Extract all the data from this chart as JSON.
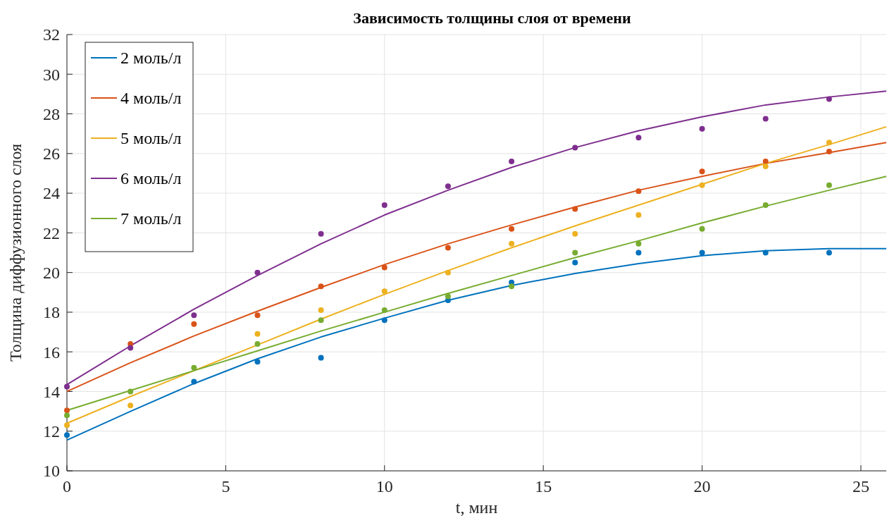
{
  "chart_data": {
    "type": "line",
    "title": "Зависимость толщины слоя от времени",
    "xlabel": "t, мин",
    "ylabel": "Толщина диффузионного слоя",
    "xlim": [
      0,
      25.8
    ],
    "xticks": [
      0,
      5,
      10,
      15,
      20,
      25
    ],
    "ylim": [
      10,
      32
    ],
    "yticks": [
      10,
      12,
      14,
      16,
      18,
      20,
      22,
      24,
      26,
      28,
      30,
      32
    ],
    "grid": true,
    "legend": "top left",
    "series": [
      {
        "name": "2 моль/л",
        "color": "#0072bd",
        "marker": "none",
        "x": [
          0,
          2,
          4,
          6,
          8,
          10,
          12,
          14,
          16,
          18,
          20,
          22,
          24,
          25.8
        ],
        "values": [
          11.55,
          13.0,
          14.4,
          15.65,
          16.75,
          17.7,
          18.6,
          19.35,
          19.95,
          20.45,
          20.85,
          21.1,
          21.2,
          21.2
        ]
      },
      {
        "name": "4 моль/л",
        "color": "#d95319",
        "marker": "none",
        "x": [
          0,
          2,
          4,
          6,
          8,
          10,
          12,
          14,
          16,
          18,
          20,
          22,
          24,
          25.8
        ],
        "values": [
          14.0,
          15.45,
          16.8,
          18.05,
          19.25,
          20.4,
          21.45,
          22.4,
          23.3,
          24.15,
          24.85,
          25.5,
          26.05,
          26.55
        ]
      },
      {
        "name": "5 моль/л",
        "color": "#edb120",
        "marker": "none",
        "x": [
          0,
          2,
          4,
          6,
          8,
          10,
          12,
          14,
          16,
          18,
          20,
          22,
          24,
          25.8
        ],
        "values": [
          12.4,
          13.75,
          15.05,
          16.35,
          17.65,
          18.9,
          20.1,
          21.25,
          22.35,
          23.4,
          24.45,
          25.5,
          26.45,
          27.35
        ]
      },
      {
        "name": "6 моль/л",
        "color": "#7e2f8e",
        "marker": "none",
        "x": [
          0,
          2,
          4,
          6,
          8,
          10,
          12,
          14,
          16,
          18,
          20,
          22,
          24,
          25.8
        ],
        "values": [
          14.35,
          16.3,
          18.15,
          19.85,
          21.45,
          22.9,
          24.15,
          25.3,
          26.3,
          27.15,
          27.85,
          28.45,
          28.85,
          29.15
        ]
      },
      {
        "name": "7 моль/л",
        "color": "#77ac30",
        "marker": "none",
        "x": [
          0,
          2,
          4,
          6,
          8,
          10,
          12,
          14,
          16,
          18,
          20,
          22,
          24,
          25.8
        ],
        "values": [
          13.05,
          14.05,
          15.05,
          16.05,
          17.05,
          18.0,
          18.95,
          19.85,
          20.75,
          21.6,
          22.5,
          23.35,
          24.15,
          24.85
        ]
      },
      {
        "type": "scatter",
        "color": "#0072bd",
        "marker": "circle",
        "x": [
          0,
          2,
          4,
          6,
          8,
          10,
          12,
          14,
          16,
          18,
          20,
          22,
          24
        ],
        "values": [
          11.8,
          null,
          14.5,
          15.5,
          15.7,
          17.6,
          18.6,
          19.5,
          20.5,
          21.0,
          21.0,
          21.0,
          21.0
        ]
      },
      {
        "type": "scatter",
        "color": "#d95319",
        "marker": "circle",
        "x": [
          0,
          2,
          4,
          6,
          8,
          10,
          12,
          14,
          16,
          18,
          20,
          22,
          24
        ],
        "values": [
          13.05,
          16.4,
          17.4,
          17.85,
          19.3,
          20.25,
          21.25,
          22.2,
          23.2,
          24.1,
          25.1,
          25.6,
          26.1
        ]
      },
      {
        "type": "scatter",
        "color": "#edb120",
        "marker": "circle",
        "x": [
          0,
          2,
          4,
          6,
          8,
          10,
          12,
          14,
          16,
          18,
          20,
          22,
          24
        ],
        "values": [
          12.3,
          13.3,
          null,
          16.9,
          18.1,
          19.05,
          20.0,
          21.45,
          21.95,
          22.9,
          24.4,
          25.35,
          26.55
        ]
      },
      {
        "type": "scatter",
        "color": "#7e2f8e",
        "marker": "circle",
        "x": [
          0,
          2,
          4,
          6,
          8,
          10,
          12,
          14,
          16,
          18,
          20,
          22,
          24
        ],
        "values": [
          14.25,
          16.2,
          17.85,
          20.0,
          21.95,
          23.4,
          24.35,
          25.6,
          26.3,
          26.8,
          27.25,
          27.75,
          28.75
        ]
      },
      {
        "type": "scatter",
        "color": "#77ac30",
        "marker": "circle",
        "x": [
          0,
          2,
          4,
          6,
          8,
          10,
          12,
          14,
          16,
          18,
          20,
          22,
          24
        ],
        "values": [
          12.8,
          14.0,
          15.2,
          16.4,
          17.6,
          18.1,
          18.8,
          19.3,
          21.0,
          21.45,
          22.2,
          23.4,
          24.4
        ]
      }
    ]
  }
}
